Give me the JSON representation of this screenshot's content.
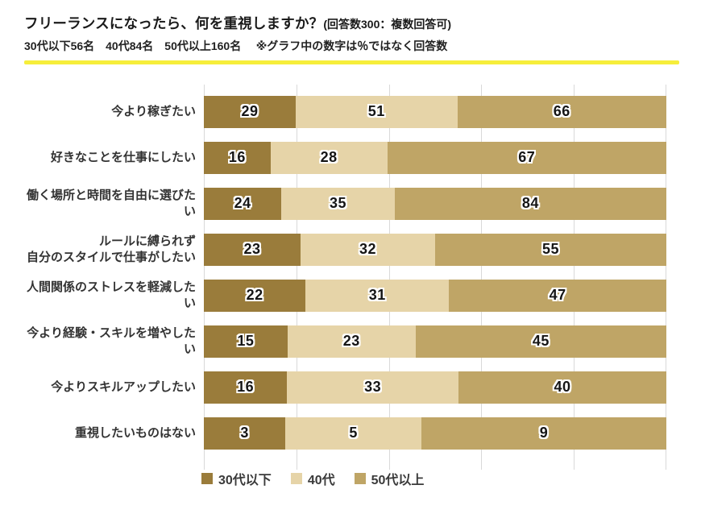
{
  "header": {
    "title": "フリーランスになったら、何を重視しますか？",
    "title_note": "(回答数300：複数回答可)",
    "subtitle_groups": "30代以下56名　40代84名　50代以上160名",
    "subtitle_note": "※グラフ中の数字は％ではなく回答数"
  },
  "styles": {
    "divider_color": "#f6ee3b",
    "gridline_color": "#d9d9d9"
  },
  "chart_data": {
    "type": "bar",
    "orientation": "horizontal",
    "stacking": "100%",
    "unit_note": "values are response counts, not percentages",
    "categories": [
      "今より稼ぎたい",
      "好きなことを仕事にしたい",
      "働く場所と時間を自由に選びたい",
      "ルールに縛られず\n自分のスタイルで仕事がしたい",
      "人間関係のストレスを軽減したい",
      "今より経験・スキルを増やしたい",
      "今よりスキルアップしたい",
      "重視したいものはない"
    ],
    "series": [
      {
        "name": "30代以下",
        "color": "#9a7c3b",
        "values": [
          29,
          16,
          24,
          23,
          22,
          15,
          16,
          3
        ]
      },
      {
        "name": "40代",
        "color": "#e6d4a8",
        "values": [
          51,
          28,
          35,
          32,
          31,
          23,
          33,
          5
        ]
      },
      {
        "name": "50代以上",
        "color": "#bfa566",
        "values": [
          66,
          67,
          84,
          55,
          47,
          45,
          40,
          9
        ]
      }
    ],
    "gridlines": {
      "axis": "x",
      "ticks_percent": [
        0,
        20,
        40,
        60,
        80,
        100
      ]
    },
    "legend_position": "bottom",
    "legend_labels": [
      "30代以下",
      "40代",
      "50代以上"
    ]
  }
}
